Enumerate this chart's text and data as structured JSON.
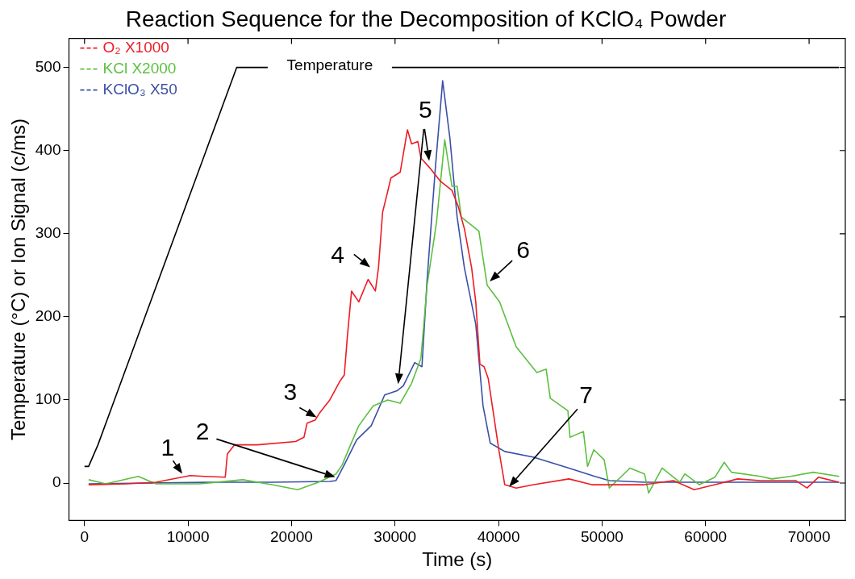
{
  "chart_data": {
    "type": "line",
    "title": "Reaction Sequence for the Decomposition of KClO₄ Powder",
    "xlabel": "Time (s)",
    "ylabel": "Temperature (°C) or Ion Signal (c/ms)",
    "xlim": [
      -1500,
      73500
    ],
    "xticks": [
      0,
      10000,
      20000,
      30000,
      40000,
      50000,
      60000,
      70000
    ],
    "ylim": [
      -45,
      535
    ],
    "yticks": [
      0,
      100,
      200,
      300,
      400,
      500
    ],
    "grid": false,
    "legend": "top left",
    "marker": "none",
    "line_style": "solid",
    "series": [
      {
        "color": "#000000",
        "x": [
          0,
          400,
          1300,
          14700,
          17700,
          23700,
          29700,
          72900
        ],
        "values": [
          20,
          20,
          46,
          500,
          500,
          null,
          500,
          500
        ]
      },
      {
        "name": "O₂ X1000",
        "color": "#ed1c24",
        "x": [
          400,
          4000,
          6900,
          10200,
          11600,
          13600,
          13800,
          14500,
          16700,
          20400,
          21200,
          21500,
          22300,
          22750,
          23700,
          24700,
          25100,
          25400,
          25800,
          26500,
          27400,
          28100,
          28400,
          28800,
          29200,
          29600,
          30500,
          31200,
          31600,
          32200,
          32500,
          33300,
          34400,
          35500,
          36100,
          36700,
          37400,
          37800,
          38200,
          38600,
          39000,
          39600,
          40000,
          40600,
          41700,
          43400,
          46800,
          49000,
          51300,
          54100,
          56900,
          58900,
          60900,
          63100,
          65300,
          68700,
          69800,
          70900,
          72900
        ],
        "values": [
          -2,
          -1,
          1,
          9,
          8,
          7,
          35,
          46,
          46,
          50,
          55,
          72,
          76,
          85,
          100,
          123,
          130,
          177,
          231,
          218,
          245,
          231,
          259,
          326,
          346,
          367,
          374,
          425,
          408,
          411,
          391,
          380,
          363,
          352,
          333,
          306,
          259,
          218,
          143,
          140,
          126,
          76,
          42,
          -2,
          -6,
          -2,
          5,
          -2,
          -2,
          -2,
          3,
          -8,
          -2,
          5,
          3,
          3,
          -6,
          7,
          1
        ]
      },
      {
        "name": "KCl X2000",
        "color": "#5cbf3f",
        "x": [
          400,
          2050,
          5200,
          6900,
          11100,
          15300,
          18100,
          20600,
          22600,
          24300,
          24900,
          25700,
          26500,
          27900,
          29300,
          30500,
          31600,
          32500,
          33100,
          34000,
          34800,
          35500,
          36000,
          36400,
          38100,
          38900,
          40100,
          41700,
          43700,
          44600,
          45000,
          46700,
          46900,
          48200,
          48600,
          49200,
          50200,
          50700,
          52700,
          54100,
          54500,
          55800,
          57500,
          58000,
          59400,
          60900,
          61800,
          62500,
          65300,
          66400,
          68200,
          70400,
          72900
        ],
        "values": [
          4,
          -1,
          8,
          -1,
          -1,
          4,
          -2,
          -8,
          1,
          11,
          22,
          46,
          69,
          93,
          100,
          96,
          120,
          150,
          238,
          313,
          413,
          357,
          357,
          320,
          303,
          238,
          218,
          164,
          133,
          137,
          102,
          87,
          55,
          62,
          20,
          40,
          28,
          -6,
          18,
          11,
          -12,
          18,
          1,
          11,
          -2,
          7,
          25,
          13,
          8,
          5,
          8,
          13,
          8
        ]
      },
      {
        "name": "KClO₃ X50",
        "color": "#3a4fa8",
        "x": [
          400,
          12500,
          18100,
          23700,
          24300,
          25100,
          26300,
          27700,
          29000,
          30200,
          30800,
          31900,
          32600,
          33100,
          33900,
          34600,
          35300,
          36000,
          36700,
          37800,
          38500,
          39200,
          40600,
          43400,
          46800,
          49300,
          50700,
          54100,
          62500,
          72900
        ],
        "values": [
          -1,
          1,
          1,
          2,
          3,
          22,
          52,
          69,
          106,
          111,
          117,
          145,
          140,
          245,
          380,
          484,
          415,
          320,
          259,
          191,
          93,
          48,
          38,
          31,
          18,
          8,
          3,
          1,
          1,
          1
        ]
      }
    ],
    "annotations": [
      "1",
      "2",
      "3",
      "4",
      "5",
      "6",
      "7",
      "Temperature"
    ]
  }
}
